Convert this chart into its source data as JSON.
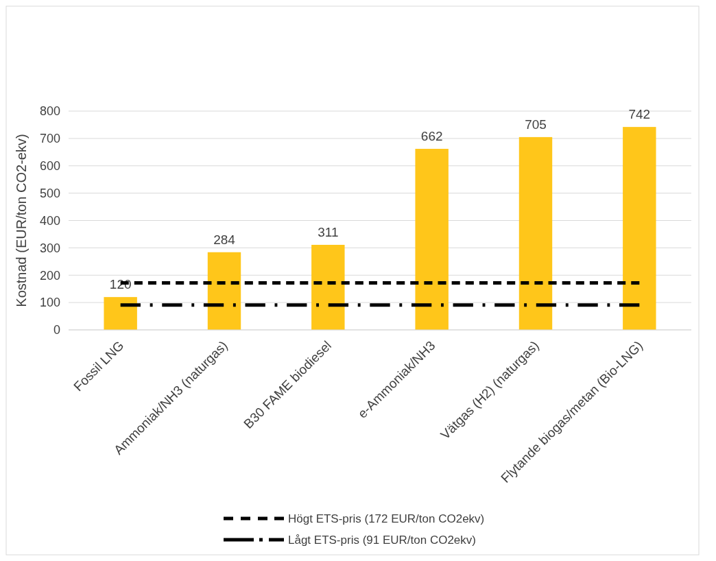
{
  "chart_data": {
    "type": "bar",
    "ylabel": "Kostnad (EUR/ton CO2-ekv)",
    "categories": [
      "Fossil LNG",
      "Ammoniak/NH3 (naturgas)",
      "B30 FAME biodiesel",
      "e-Ammoniak/NH3",
      "Vätgas (H2) (naturgas)",
      "Flytande biogas/metan (Bio-LNG)"
    ],
    "series": [
      {
        "color": "#ffc61a",
        "values": [
          120,
          284,
          311,
          662,
          705,
          742
        ],
        "value_labels": [
          "120",
          "284",
          "311",
          "662",
          "705",
          "742"
        ]
      },
      {
        "type": "line",
        "name": "Högt ETS-pris (172 EUR/ton CO2ekv)",
        "color": "#000000",
        "line_style": "dashed",
        "values": [
          172,
          172,
          172,
          172,
          172,
          172
        ]
      },
      {
        "type": "line",
        "name": "Lågt ETS-pris (91 EUR/ton CO2ekv)",
        "color": "#000000",
        "line_style": "dashdot",
        "values": [
          91,
          91,
          91,
          91,
          91,
          91
        ]
      }
    ],
    "ylim": [
      0,
      800
    ],
    "yticks": [
      0,
      100,
      200,
      300,
      400,
      500,
      600,
      700,
      800
    ],
    "grid": "y",
    "legend": "bottom"
  }
}
